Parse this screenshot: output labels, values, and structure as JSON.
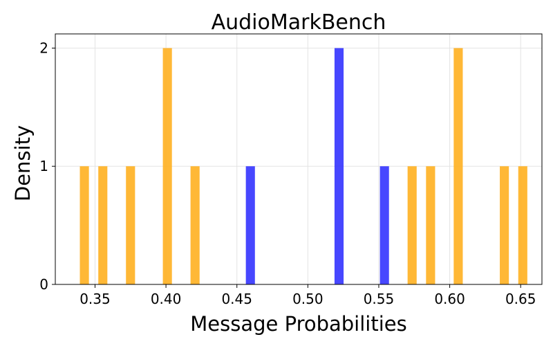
{
  "chart_data": {
    "type": "bar",
    "title": "AudioMarkBench",
    "xlabel": "Message Probabilities",
    "ylabel": "Density",
    "xlim": [
      0.322,
      0.665
    ],
    "ylim": [
      0,
      2.12
    ],
    "x_ticks": [
      "0.35",
      "0.40",
      "0.45",
      "0.50",
      "0.55",
      "0.60",
      "0.65"
    ],
    "y_ticks": [
      "0",
      "1",
      "2"
    ],
    "grid": true,
    "bar_width": 0.0064,
    "series": [
      {
        "color": "#FFB020",
        "bars": [
          {
            "x": 0.3425,
            "value": 1
          },
          {
            "x": 0.3555,
            "value": 1
          },
          {
            "x": 0.375,
            "value": 1
          },
          {
            "x": 0.401,
            "value": 2
          },
          {
            "x": 0.4205,
            "value": 1
          },
          {
            "x": 0.5735,
            "value": 1
          },
          {
            "x": 0.5865,
            "value": 1
          },
          {
            "x": 0.606,
            "value": 2
          },
          {
            "x": 0.6385,
            "value": 1
          },
          {
            "x": 0.6515,
            "value": 1
          }
        ]
      },
      {
        "color": "#3333FF",
        "bars": [
          {
            "x": 0.4595,
            "value": 1
          },
          {
            "x": 0.522,
            "value": 2
          },
          {
            "x": 0.554,
            "value": 1
          }
        ]
      }
    ]
  }
}
